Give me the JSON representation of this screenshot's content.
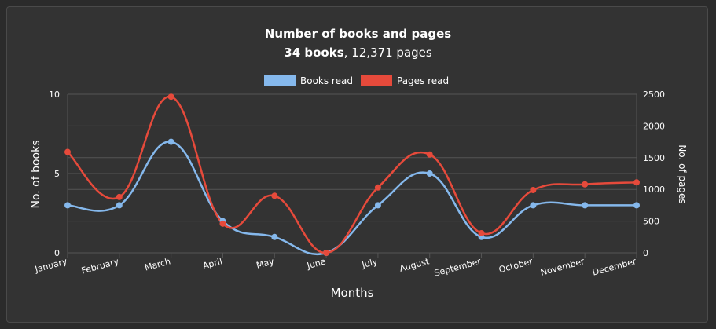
{
  "header": {
    "title": "Number of books and pages",
    "books_count": "34 books",
    "pages_count": ", 12,371 pages"
  },
  "colors": {
    "books": "#85b8ec",
    "pages": "#e64a3b",
    "grid": "#555555",
    "text": "#ffffff"
  },
  "chart_data": {
    "type": "line",
    "title": "Number of books and pages",
    "xlabel": "Months",
    "ylabel": "No. of books",
    "y2label": "No. of pages",
    "categories": [
      "January",
      "February",
      "March",
      "April",
      "May",
      "June",
      "July",
      "August",
      "September",
      "October",
      "November",
      "December"
    ],
    "ylim": [
      0,
      10
    ],
    "y_ticks": [
      0,
      5,
      10
    ],
    "y2lim": [
      0,
      2500
    ],
    "y2_ticks": [
      0,
      500,
      1000,
      1500,
      2000,
      2500
    ],
    "legend": "top",
    "grid": true,
    "series": [
      {
        "name": "Books read",
        "axis": "left",
        "values": [
          3,
          3,
          7,
          2,
          1,
          0,
          3,
          5,
          1,
          3,
          3,
          3
        ]
      },
      {
        "name": "Pages read",
        "axis": "right",
        "values": [
          1590,
          880,
          2460,
          460,
          900,
          0,
          1030,
          1550,
          310,
          990,
          1080,
          1110
        ]
      }
    ]
  }
}
